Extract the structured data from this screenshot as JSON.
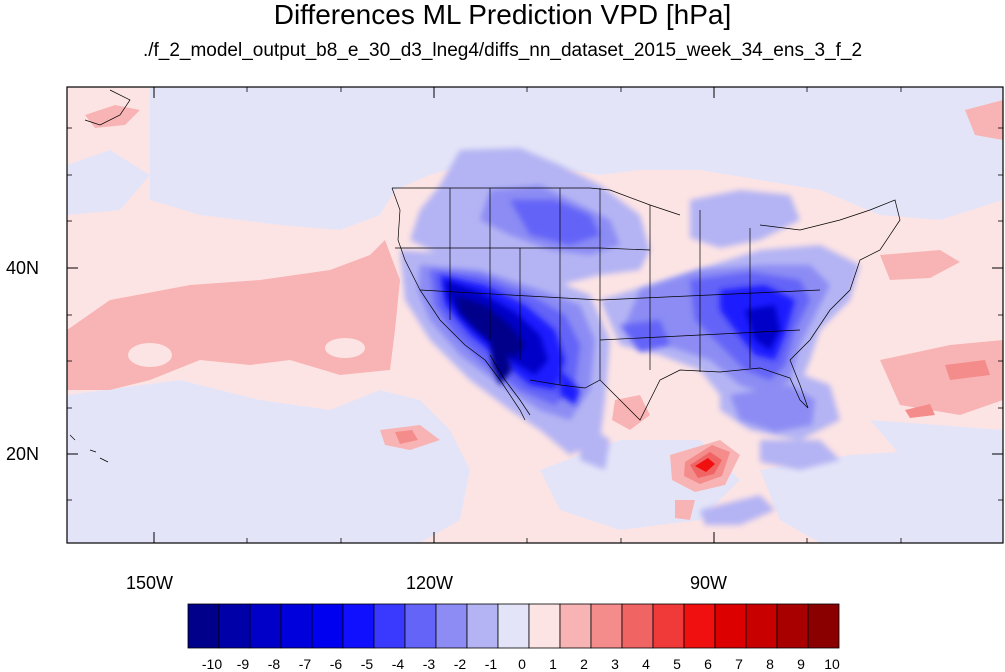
{
  "title": "Differences ML Prediction VPD [hPa]",
  "subtitle": "./f_2_model_output_b8_e_30_d3_lneg4/diffs_nn_dataset_2015_week_34_ens_3_f_2",
  "axes": {
    "lat_labels": [
      "40N",
      "20N"
    ],
    "lon_labels": [
      "150W",
      "120W",
      "90W"
    ]
  },
  "colorbar": {
    "labels": [
      "-10",
      "-9",
      "-8",
      "-7",
      "-6",
      "-5",
      "-4",
      "-3",
      "-2",
      "-1",
      "0",
      "1",
      "2",
      "3",
      "4",
      "5",
      "6",
      "7",
      "8",
      "9",
      "10"
    ],
    "colors": [
      "#00008a",
      "#0000a8",
      "#0000c8",
      "#0000dc",
      "#0000f0",
      "#1010ff",
      "#3a3aff",
      "#6464f8",
      "#8c8cf4",
      "#b4b4f4",
      "#e4e4f8",
      "#fde4e4",
      "#f8b4b4",
      "#f48c8c",
      "#f06464",
      "#f03a3a",
      "#f01010",
      "#dc0000",
      "#c80000",
      "#a80000",
      "#8a0000"
    ]
  }
}
